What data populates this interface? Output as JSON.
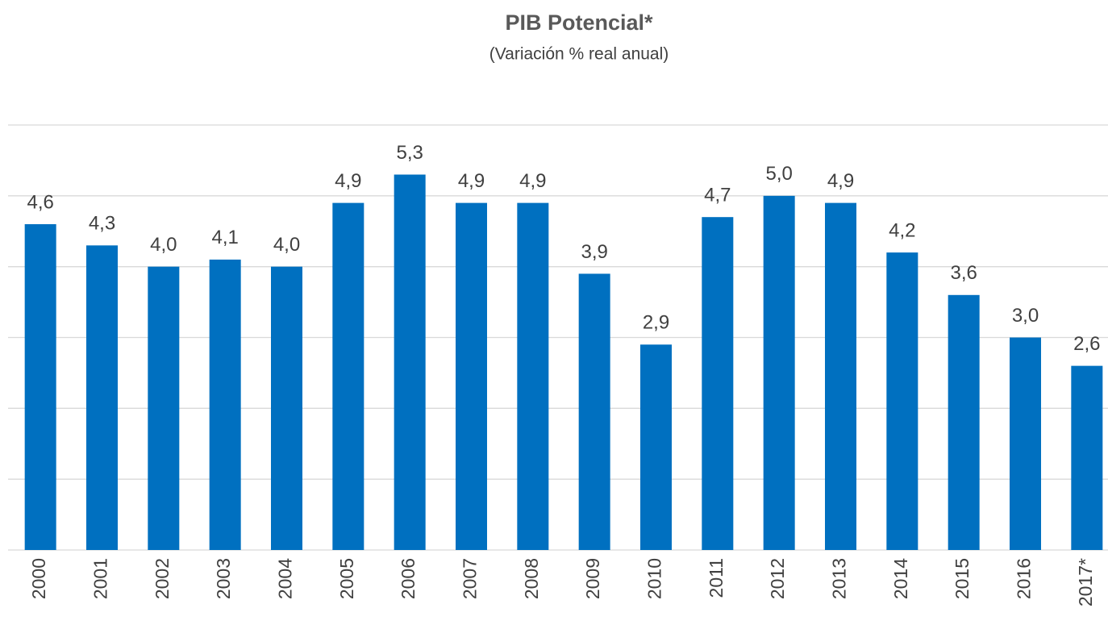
{
  "chart_data": {
    "type": "bar",
    "title": "PIB Potencial*",
    "subtitle": "(Variación % real anual)",
    "categories": [
      "2000",
      "2001",
      "2002",
      "2003",
      "2004",
      "2005",
      "2006",
      "2007",
      "2008",
      "2009",
      "2010",
      "2011",
      "2012",
      "2013",
      "2014",
      "2015",
      "2016",
      "2017*"
    ],
    "values": [
      4.6,
      4.3,
      4.0,
      4.1,
      4.0,
      4.9,
      5.3,
      4.9,
      4.9,
      3.9,
      2.9,
      4.7,
      5.0,
      4.9,
      4.2,
      3.6,
      3.0,
      2.6
    ],
    "value_labels": [
      "4,6",
      "4,3",
      "4,0",
      "4,1",
      "4,0",
      "4,9",
      "5,3",
      "4,9",
      "4,9",
      "3,9",
      "2,9",
      "4,7",
      "5,0",
      "4,9",
      "4,2",
      "3,6",
      "3,0",
      "2,6"
    ],
    "color": "#0070c0",
    "ylim": [
      0,
      6
    ],
    "yticks": [
      0,
      1,
      2,
      3,
      4,
      5,
      6
    ],
    "grid": true
  }
}
